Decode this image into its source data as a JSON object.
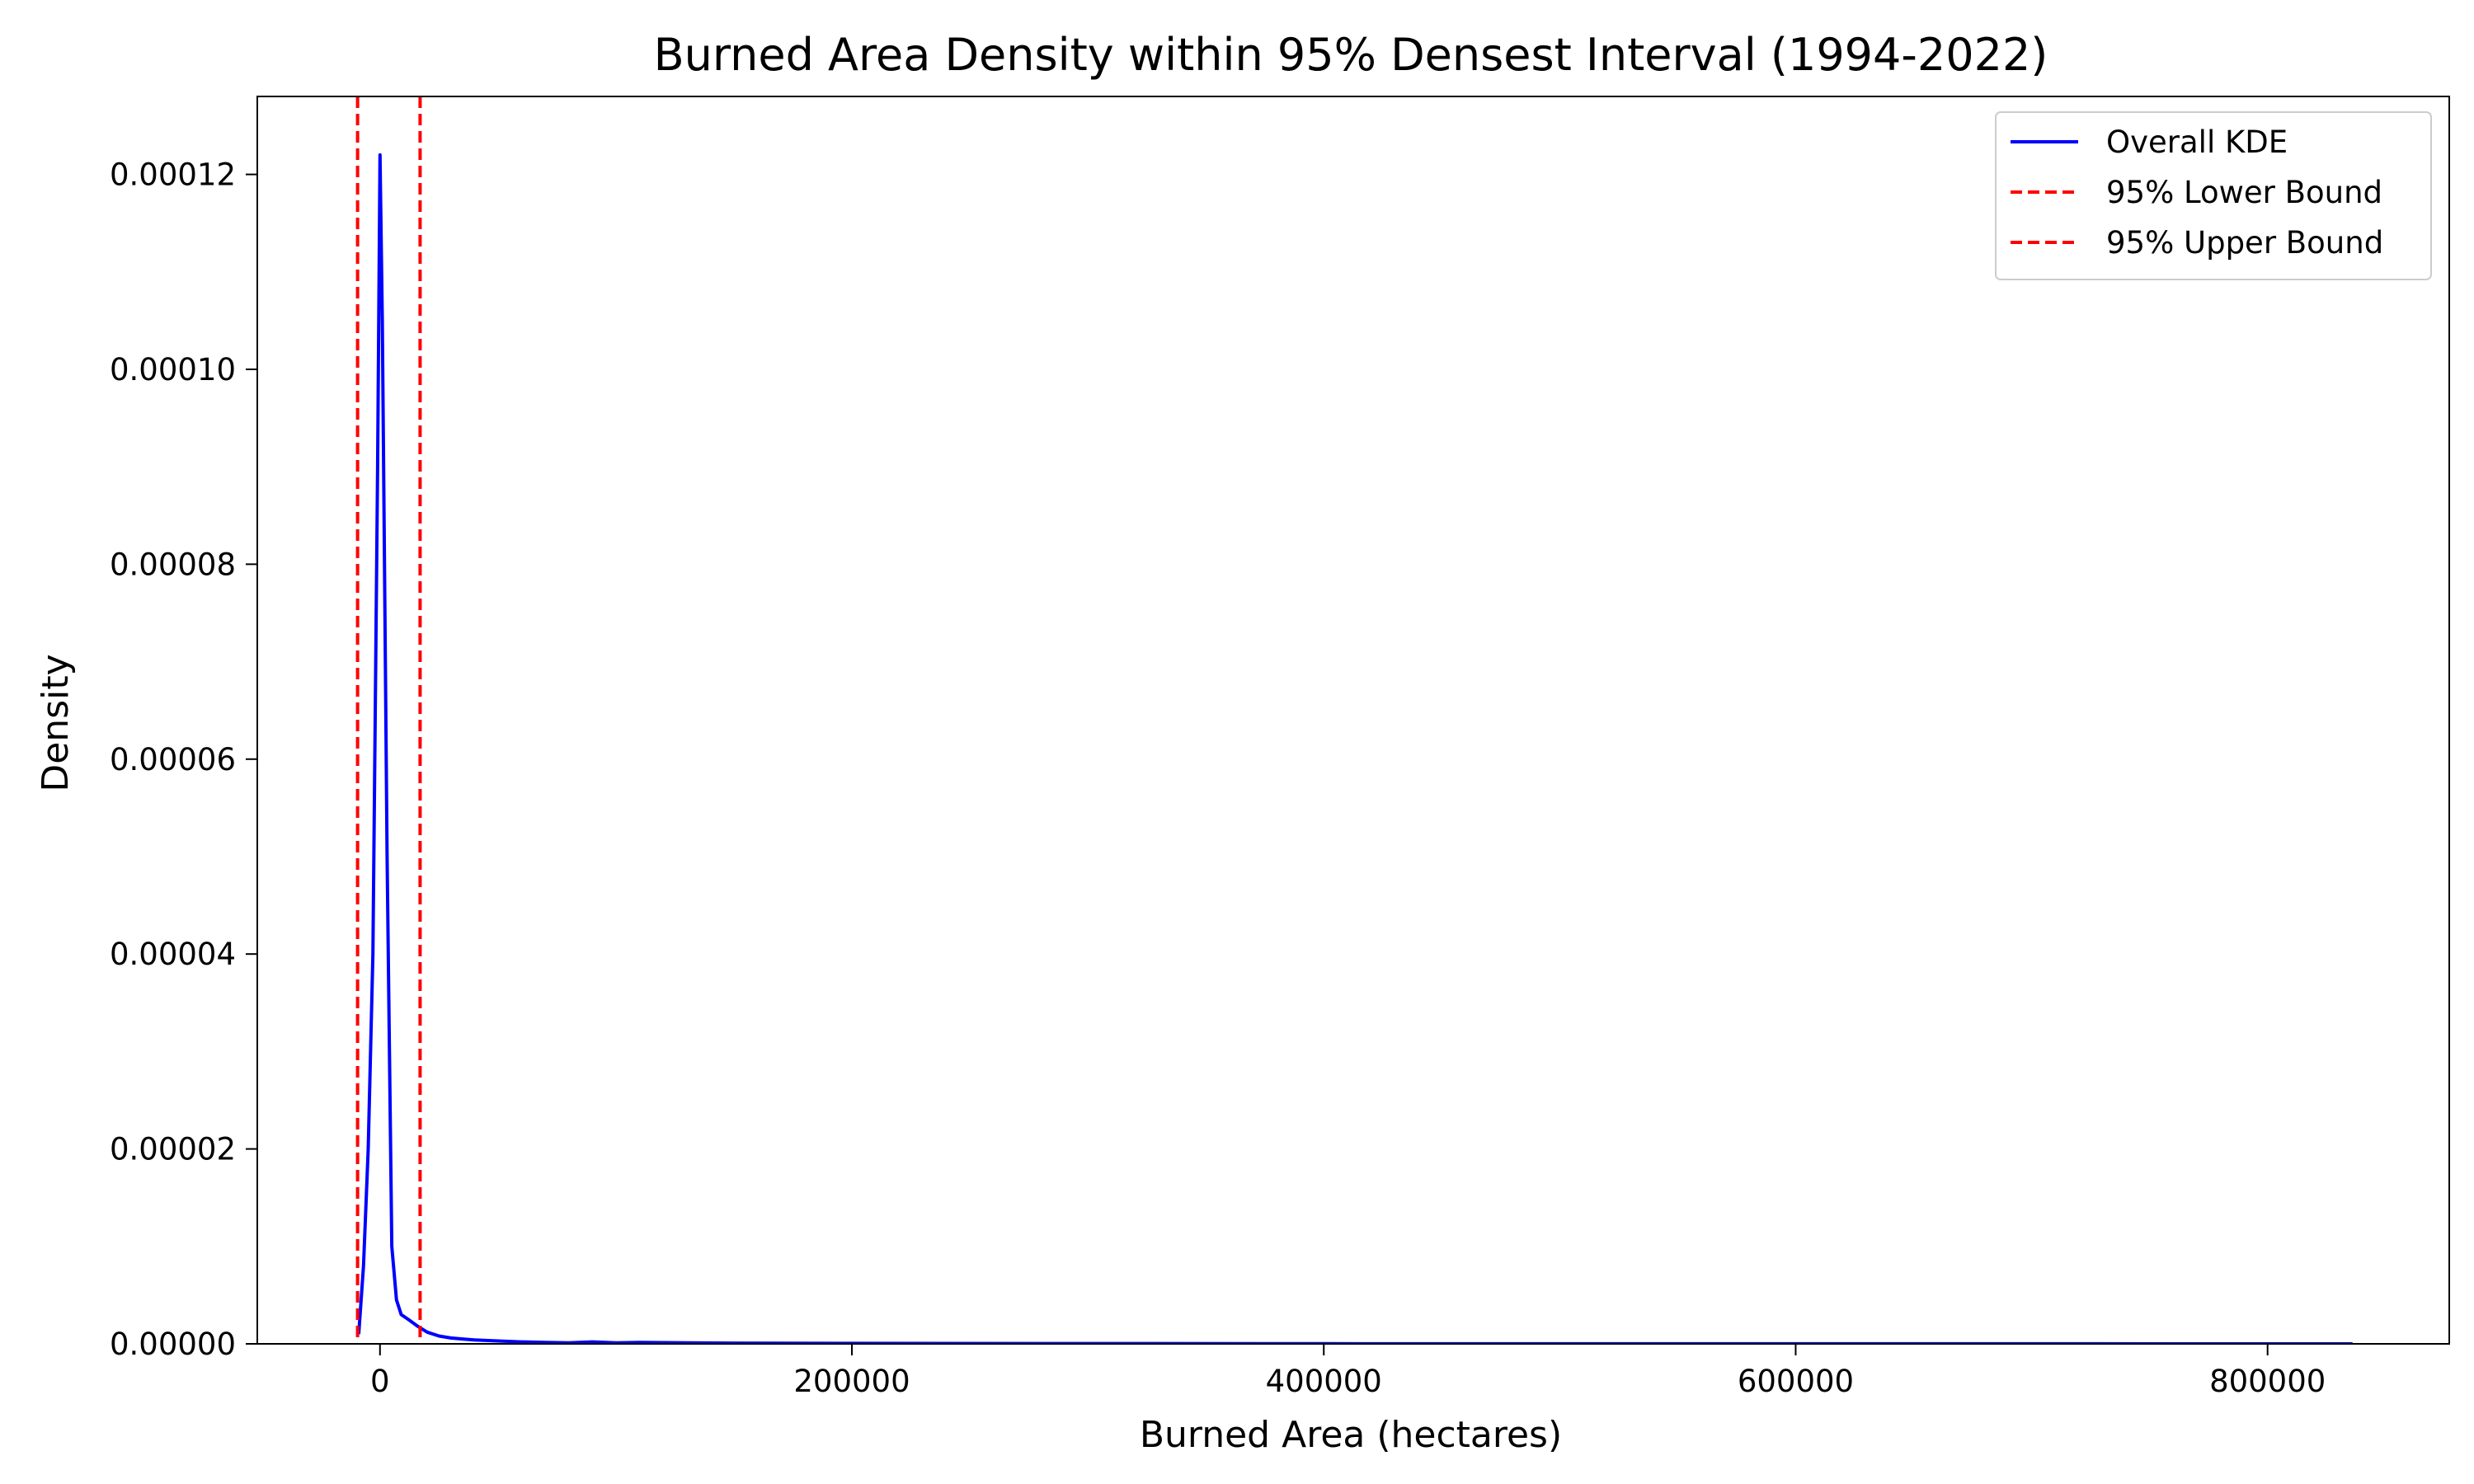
{
  "chart_data": {
    "type": "line",
    "title": "Burned Area Density within 95% Densest Interval (1994-2022)",
    "xlabel": "Burned Area (hectares)",
    "ylabel": "Density",
    "xlim": [
      -52000,
      877000
    ],
    "ylim": [
      0,
      0.000128
    ],
    "x_ticks": [
      0,
      200000,
      400000,
      600000,
      800000
    ],
    "x_tick_labels": [
      "0",
      "200000",
      "400000",
      "600000",
      "800000"
    ],
    "y_ticks": [
      0,
      2e-05,
      4e-05,
      6e-05,
      8e-05,
      0.0001,
      0.00012
    ],
    "y_tick_labels": [
      "0.00000",
      "0.00002",
      "0.00004",
      "0.00006",
      "0.00008",
      "0.00010",
      "0.00012"
    ],
    "grid": false,
    "legend_position": "top-right",
    "series": [
      {
        "name": "Overall KDE",
        "color": "#0000ff",
        "style": "solid",
        "x": [
          -9000,
          -7000,
          -5000,
          -3000,
          -1000,
          0,
          1000,
          3000,
          5000,
          7000,
          9000,
          12000,
          16000,
          20000,
          25000,
          30000,
          35000,
          40000,
          50000,
          60000,
          70000,
          80000,
          90000,
          100000,
          110000,
          130000,
          150000,
          200000,
          300000,
          400000,
          500000,
          600000,
          700000,
          800000,
          836000
        ],
        "y": [
          1e-06,
          8e-06,
          2e-05,
          4e-05,
          9e-05,
          0.000122,
          0.000105,
          5e-05,
          1e-05,
          4.5e-06,
          3e-06,
          2.5e-06,
          1.8e-06,
          1.2e-06,
          8e-07,
          6e-07,
          5e-07,
          4e-07,
          3e-07,
          2e-07,
          1.5e-07,
          1e-07,
          2e-07,
          1e-07,
          1.5e-07,
          1e-07,
          8e-08,
          5e-08,
          3e-08,
          2e-08,
          1e-08,
          1e-08,
          1e-08,
          0.0,
          0.0
        ]
      }
    ],
    "vlines": [
      {
        "name": "95% Lower Bound",
        "x": -9500,
        "color": "#ff0000",
        "style": "dashed"
      },
      {
        "name": "95% Upper Bound",
        "x": 17000,
        "color": "#ff0000",
        "style": "dashed"
      }
    ]
  }
}
